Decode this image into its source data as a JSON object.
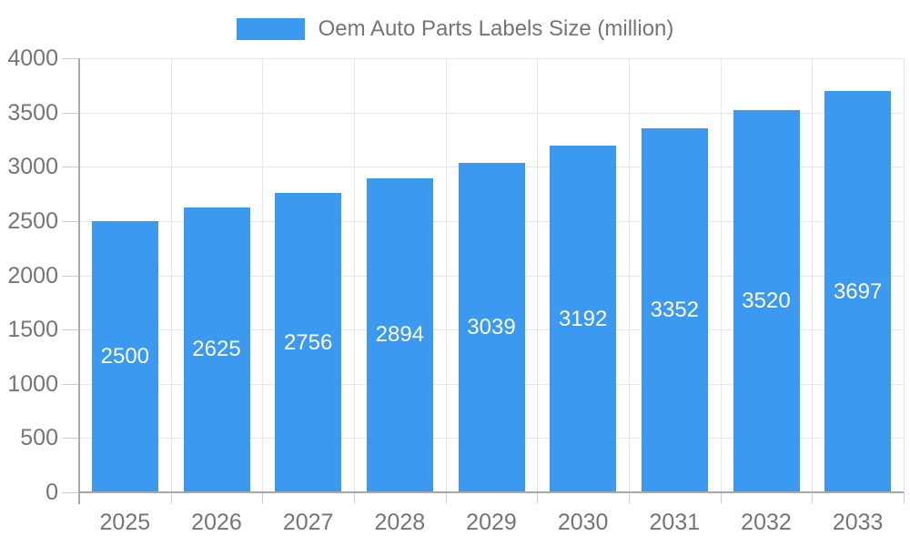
{
  "legend": {
    "label": "Oem Auto Parts Labels Size (million)"
  },
  "chart_data": {
    "type": "bar",
    "title": "Oem Auto Parts Labels Size (million)",
    "categories": [
      "2025",
      "2026",
      "2027",
      "2028",
      "2029",
      "2030",
      "2031",
      "2032",
      "2033"
    ],
    "values": [
      2500,
      2625,
      2756,
      2894,
      3039,
      3192,
      3352,
      3520,
      3697
    ],
    "xlabel": "",
    "ylabel": "",
    "ylim": [
      0,
      4000
    ],
    "ytick_step": 500,
    "ytick_labels": [
      "0",
      "500",
      "1000",
      "1500",
      "2000",
      "2500",
      "3000",
      "3500",
      "4000"
    ],
    "grid": true,
    "legend_position": "top",
    "value_labels": "inside-center",
    "colors": {
      "bar": "#3b99ef",
      "grid": "#e6e6e6",
      "tick": "#cccccc",
      "axis": "#a8a8a8",
      "tick_text": "#757575",
      "value_label": "#ffffff",
      "background": "#ffffff"
    }
  }
}
